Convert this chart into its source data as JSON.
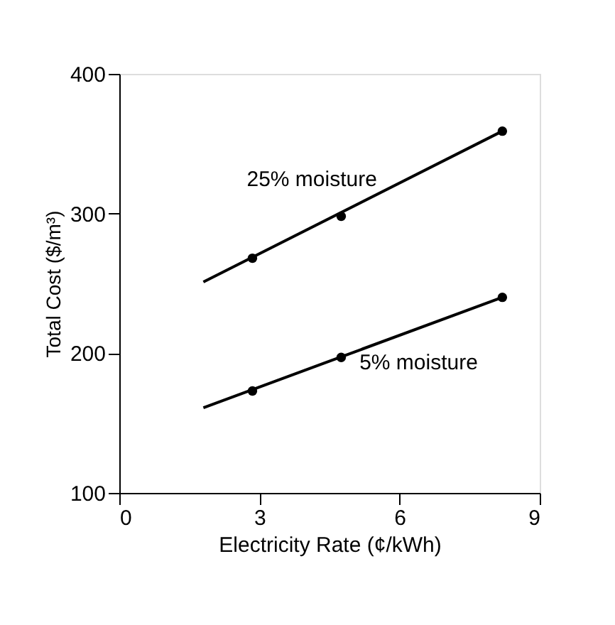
{
  "chart_data": {
    "type": "line",
    "xlabel": "Electricity Rate (¢/kWh)",
    "ylabel": "Total Cost ($/m³)",
    "xlim": [
      0,
      9
    ],
    "xticks": [
      0,
      3,
      6,
      9
    ],
    "ylim": [
      100,
      400
    ],
    "yticks": [
      100,
      200,
      300,
      400
    ],
    "grid": false,
    "legend": false,
    "series": [
      {
        "name": "25% moisture",
        "color": "#000000",
        "marker": "none",
        "x": [
          1.8,
          8.2
        ],
        "values": [
          251,
          359
        ]
      },
      {
        "type": "scatter",
        "color": "#000000",
        "marker": "circle",
        "x": [
          2.85,
          4.75,
          8.2
        ],
        "values": [
          268,
          298,
          359
        ]
      },
      {
        "name": "5% moisture",
        "color": "#000000",
        "marker": "none",
        "x": [
          1.8,
          8.2
        ],
        "values": [
          161,
          240
        ]
      },
      {
        "type": "scatter",
        "color": "#000000",
        "marker": "circle",
        "x": [
          2.85,
          4.75,
          8.2
        ],
        "values": [
          173,
          197,
          240
        ]
      }
    ]
  }
}
